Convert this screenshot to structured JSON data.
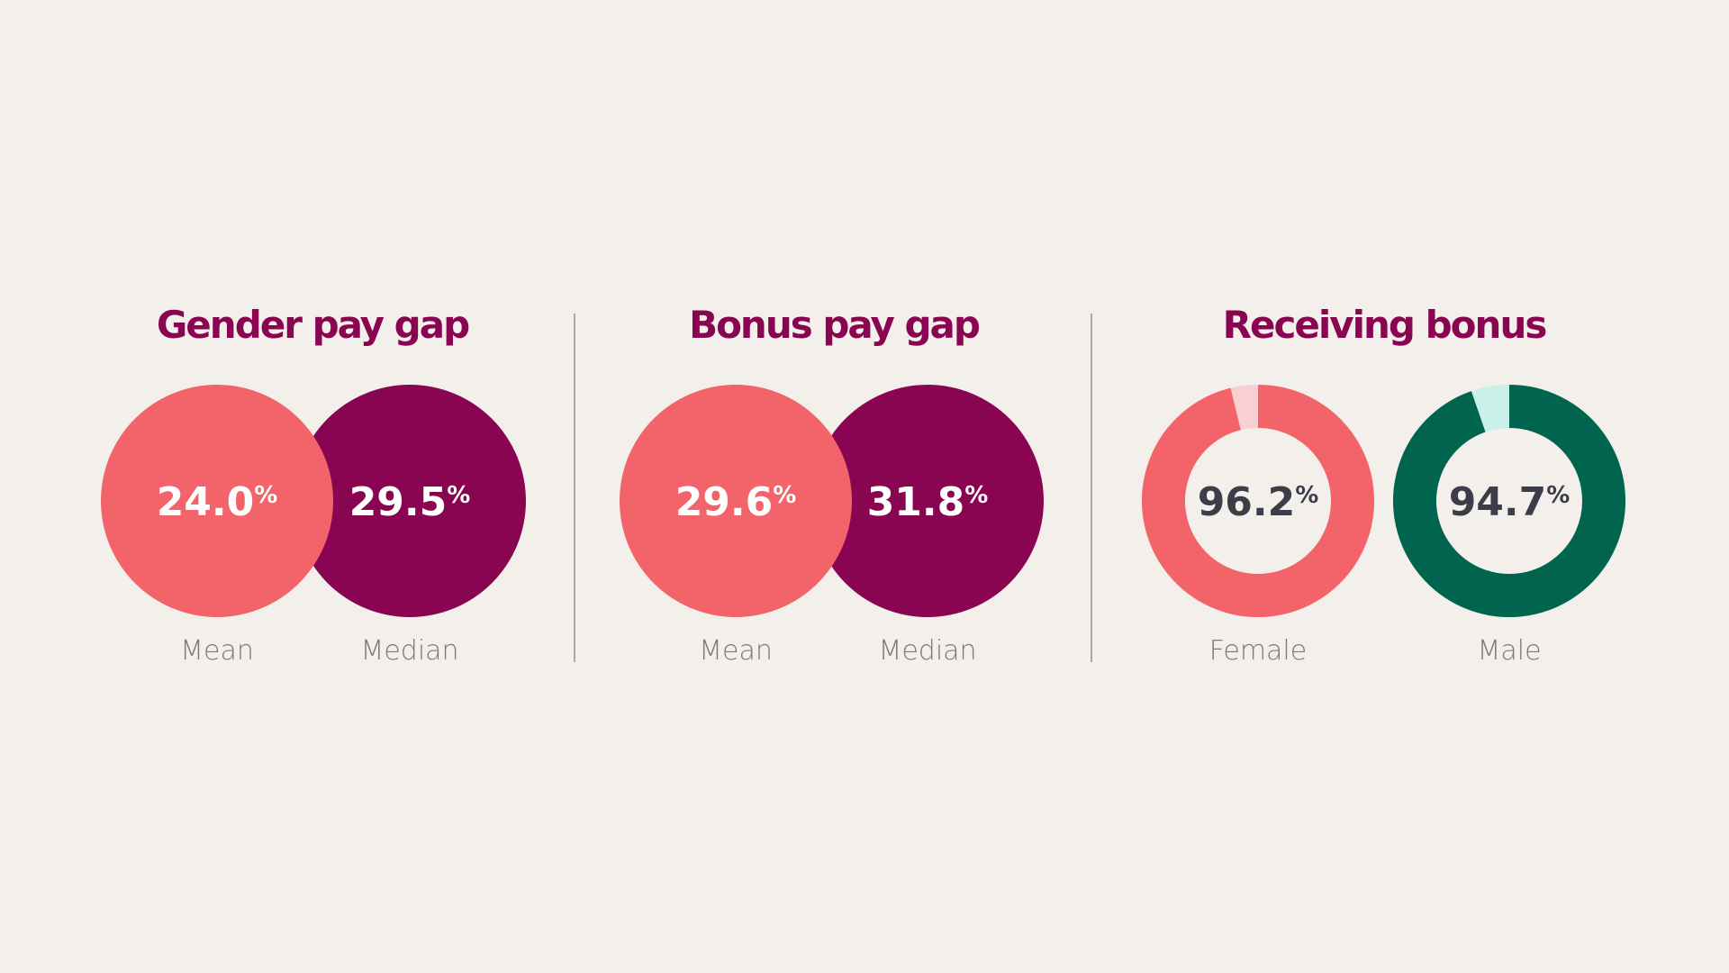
{
  "unit": "%",
  "panels": [
    {
      "type": "circles",
      "title": "Gender pay gap",
      "title_color": "#8a0551",
      "items": [
        {
          "label": "Mean",
          "value": 24.0,
          "value_label": "24.0",
          "color": "#f2646a",
          "text_color": "#ffffff"
        },
        {
          "label": "Median",
          "value": 29.5,
          "value_label": "29.5",
          "color": "#8a0551",
          "text_color": "#ffffff"
        }
      ]
    },
    {
      "type": "circles",
      "title": "Bonus pay gap",
      "title_color": "#8a0551",
      "items": [
        {
          "label": "Mean",
          "value": 29.6,
          "value_label": "29.6",
          "color": "#f2646a",
          "text_color": "#ffffff"
        },
        {
          "label": "Median",
          "value": 31.8,
          "value_label": "31.8",
          "color": "#8a0551",
          "text_color": "#ffffff"
        }
      ]
    },
    {
      "type": "donut",
      "title": "Receiving bonus",
      "title_color": "#8a0551",
      "items": [
        {
          "label": "Female",
          "value": 96.2,
          "value_label": "96.2",
          "color": "#f2646a",
          "rest_color": "#f9d0d2",
          "text_color": "#3d3d4a"
        },
        {
          "label": "Male",
          "value": 94.7,
          "value_label": "94.7",
          "color": "#00644f",
          "rest_color": "#c9f0e9",
          "text_color": "#3d3d4a"
        }
      ]
    }
  ]
}
